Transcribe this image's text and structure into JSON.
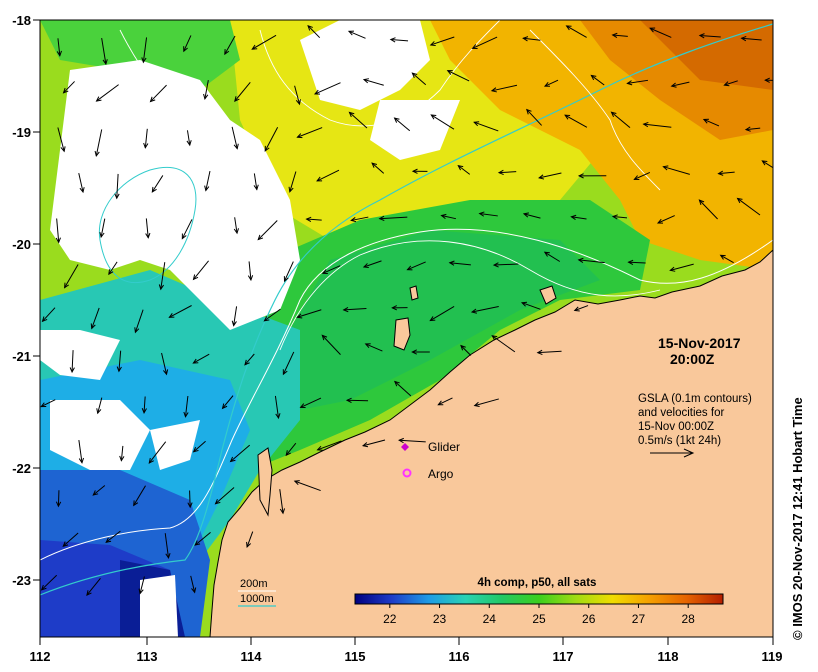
{
  "map": {
    "lon_ticks": [
      "112",
      "113",
      "114",
      "115",
      "116",
      "117",
      "118",
      "119"
    ],
    "lat_ticks": [
      "-18",
      "-19",
      "-20",
      "-21",
      "-22",
      "-23"
    ],
    "lon_range": [
      112,
      119
    ],
    "lat_range": [
      -23.5,
      -18
    ],
    "land_color": "#f9c89b",
    "cloud_color": "#ffffff"
  },
  "annotation": {
    "date": "15-Nov-2017",
    "time": "20:00Z",
    "gsla_lines": [
      "GSLA (0.1m contours)",
      "and velocities for",
      "15-Nov 00:00Z",
      "0.5m/s (1kt 24h)"
    ]
  },
  "legend": {
    "glider_label": "Glider",
    "argo_label": "Argo",
    "glider_color": "#cc00cc",
    "argo_color": "#ff33ff"
  },
  "bathymetry": {
    "label_200": "200m",
    "label_1000": "1000m",
    "color_200": "#ffffff",
    "color_1000": "#33cccc"
  },
  "colorbar": {
    "title": "4h comp, p50, all sats",
    "ticks": [
      "22",
      "23",
      "24",
      "25",
      "26",
      "27",
      "28"
    ],
    "range": [
      21.3,
      28.7
    ],
    "stops": [
      "#000080",
      "#1e3cc8",
      "#1e9be6",
      "#2ad2b4",
      "#22c864",
      "#3ccf1e",
      "#a0dc14",
      "#f0dc00",
      "#f5a000",
      "#e66400",
      "#b41e00"
    ]
  },
  "credit": "© IMOS 20-Nov-2017 12:41 Hobart Time"
}
